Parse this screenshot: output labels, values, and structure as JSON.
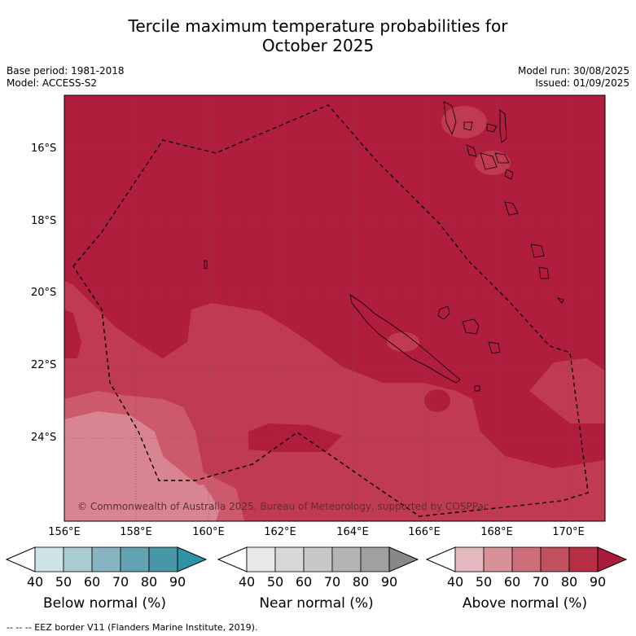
{
  "title_line1": "Tercile maximum temperature probabilities for",
  "title_line2": "October 2025",
  "meta": {
    "base_period": "Base period: 1981-2018",
    "model": "Model: ACCESS-S2",
    "model_run": "Model run: 30/08/2025",
    "issued": "Issued: 01/09/2025"
  },
  "map": {
    "lat_ticks": [
      "16°S",
      "18°S",
      "20°S",
      "22°S",
      "24°S"
    ],
    "lon_ticks": [
      "156°E",
      "158°E",
      "160°E",
      "162°E",
      "164°E",
      "166°E",
      "168°E",
      "170°E"
    ],
    "copyright": "© Commonwealth of Australia 2025, Bureau of Meteorology, supported by COSPPac",
    "colors": {
      "above_80_90": "#b11d3c",
      "above_70_80": "#c03a52",
      "above_60_70": "#cd5a6c",
      "above_50_60": "#d98591",
      "above_40_50": "#e5b4bb"
    }
  },
  "colorbars": {
    "tick_labels": [
      "40",
      "50",
      "60",
      "70",
      "80",
      "90"
    ],
    "below": {
      "title": "Below normal (%)",
      "colors": [
        "#cde3e8",
        "#a9cbd2",
        "#86b5c1",
        "#63a2b2",
        "#4897a8",
        "#2f93a8"
      ]
    },
    "near": {
      "title": "Near normal (%)",
      "colors": [
        "#e8e8e8",
        "#d8d8d8",
        "#c8c8c8",
        "#b4b4b4",
        "#a0a0a0",
        "#888888"
      ]
    },
    "above": {
      "title": "Above normal (%)",
      "colors": [
        "#e5b8bf",
        "#d99198",
        "#cd6f7a",
        "#c2515f",
        "#b72f44",
        "#ab1c3a"
      ]
    }
  },
  "footer": "--  --  -- EEZ border V11 (Flanders Marine Institute, 2019)."
}
